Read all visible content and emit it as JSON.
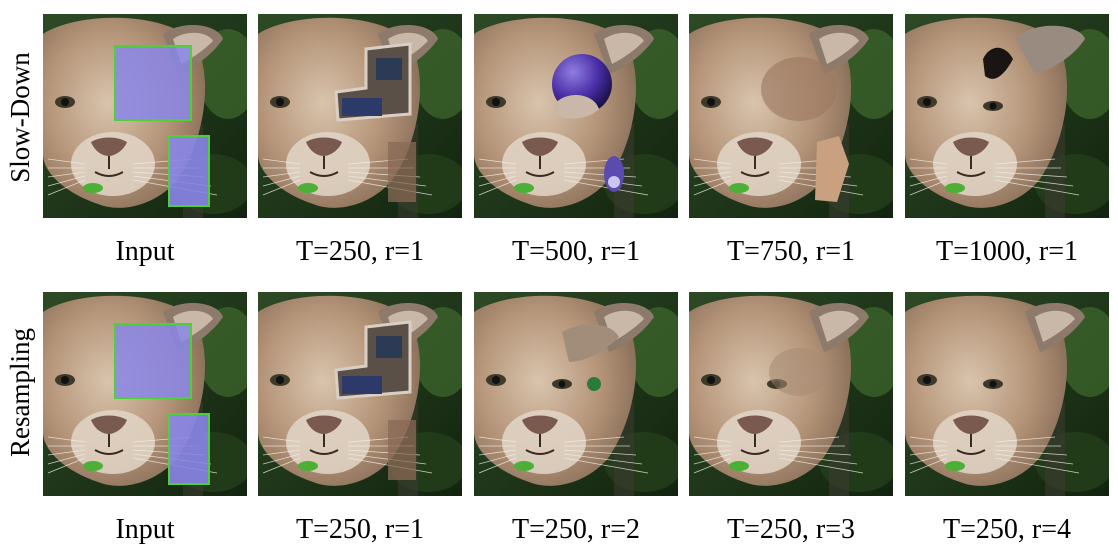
{
  "figure": {
    "rows": [
      {
        "label": "Slow-Down",
        "panels": [
          {
            "caption": "Input",
            "kind": "input"
          },
          {
            "caption": "T=250, r=1",
            "kind": "patch"
          },
          {
            "caption": "T=500, r=1",
            "kind": "sphere"
          },
          {
            "caption": "T=750, r=1",
            "kind": "blur"
          },
          {
            "caption": "T=1000, r=1",
            "kind": "blackear"
          }
        ]
      },
      {
        "label": "Resampling",
        "panels": [
          {
            "caption": "Input",
            "kind": "input"
          },
          {
            "caption": "T=250, r=1",
            "kind": "patch"
          },
          {
            "caption": "T=250, r=2",
            "kind": "ear"
          },
          {
            "caption": "T=250, r=3",
            "kind": "nearclean"
          },
          {
            "caption": "T=250, r=4",
            "kind": "clean"
          }
        ]
      }
    ],
    "colors": {
      "mask_fill": "#8a86e8",
      "mask_border": "#4fcf3a",
      "sphere": "#4a2fa8",
      "background_dark": "#1f3a1e"
    }
  }
}
